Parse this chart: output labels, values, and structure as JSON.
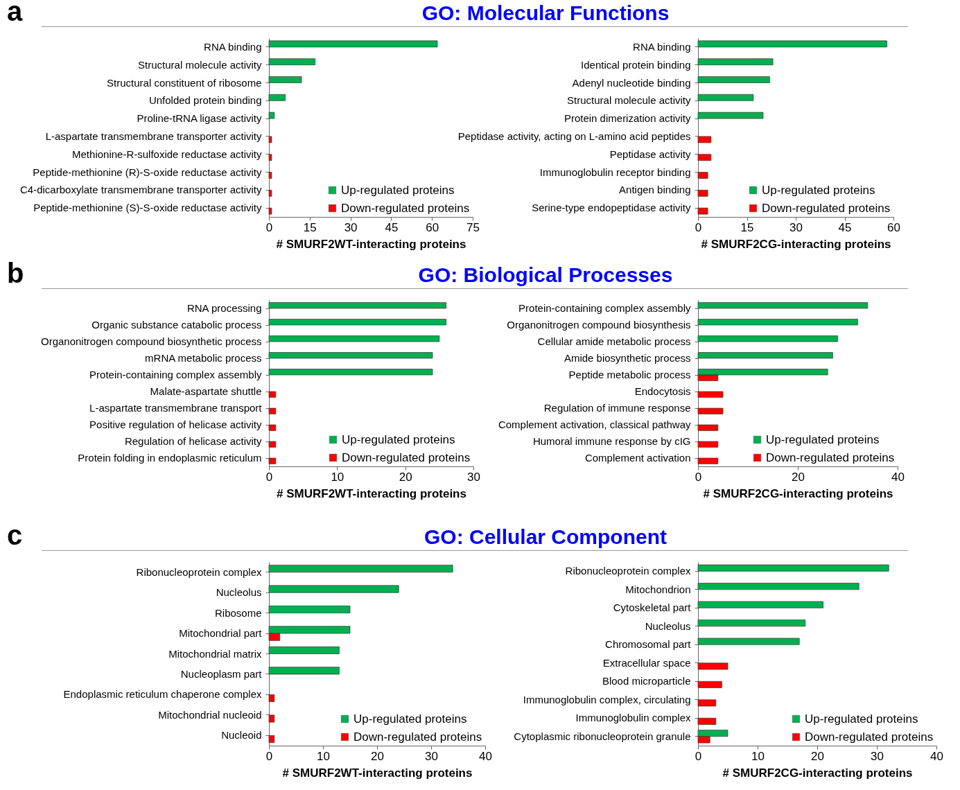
{
  "chart_data": [
    {
      "type": "bar",
      "orientation": "horizontal",
      "title": "GO: Molecular Functions",
      "annotations": [
        "a"
      ],
      "xlabel": "# SMURF2WT-interacting proteins",
      "categories": [
        "RNA binding",
        "Structural molecule activity",
        "Structural constituent of ribosome",
        "Unfolded protein binding",
        "Proline-tRNA ligase activity",
        "L-aspartate transmembrane transporter activity",
        "Methionine-R-sulfoxide reductase activity",
        "Peptide-methionine (R)-S-oxide reductase activity",
        "C4-dicarboxylate transmembrane transporter activity",
        "Peptide-methionine (S)-S-oxide reductase activity"
      ],
      "xlim": [
        0,
        75
      ],
      "xticks": [
        0,
        15,
        30,
        45,
        60,
        75
      ],
      "legend": "bottom right",
      "series": [
        {
          "name": "Up-regulated proteins",
          "color": "#00b050",
          "values": [
            62,
            17,
            12,
            6,
            2,
            null,
            null,
            null,
            null,
            null
          ]
        },
        {
          "name": "Down-regulated proteins",
          "color": "#ff0000",
          "values": [
            null,
            null,
            null,
            null,
            null,
            1,
            1,
            1,
            1,
            1
          ]
        }
      ]
    },
    {
      "type": "bar",
      "orientation": "horizontal",
      "xlabel": "# SMURF2CG-interacting proteins",
      "categories": [
        "RNA binding",
        "Identical protein binding",
        "Adenyl nucleotide binding",
        "Structural molecule activity",
        "Protein dimerization activity",
        "Peptidase activity, acting on L-amino acid peptides",
        "Peptidase activity",
        "Immunoglobulin receptor binding",
        "Antigen binding",
        "Serine-type endopeptidase activity"
      ],
      "xlim": [
        0,
        60
      ],
      "xticks": [
        0,
        15,
        30,
        45,
        60
      ],
      "legend": "bottom right",
      "series": [
        {
          "name": "Up-regulated proteins",
          "color": "#00b050",
          "values": [
            58,
            23,
            22,
            17,
            20,
            null,
            null,
            null,
            null,
            null
          ]
        },
        {
          "name": "Down-regulated proteins",
          "color": "#ff0000",
          "values": [
            null,
            null,
            null,
            null,
            null,
            4,
            4,
            3,
            3,
            3
          ]
        }
      ]
    },
    {
      "type": "bar",
      "orientation": "horizontal",
      "title": "GO: Biological Processes",
      "annotations": [
        "b"
      ],
      "xlabel": "# SMURF2WT-interacting proteins",
      "categories": [
        "RNA processing",
        "Organic substance catabolic process",
        "Organonitrogen compound biosynthetic process",
        "mRNA metabolic process",
        "Protein-containing complex assembly",
        "Malate-aspartate shuttle",
        "L-aspartate transmembrane transport",
        "Positive regulation of helicase activity",
        "Regulation of helicase activity",
        "Protein folding in endoplasmic reticulum"
      ],
      "xlim": [
        0,
        30
      ],
      "xticks": [
        0,
        10,
        20,
        30
      ],
      "legend": "bottom right",
      "series": [
        {
          "name": "Up-regulated proteins",
          "color": "#00b050",
          "values": [
            26,
            26,
            25,
            24,
            24,
            null,
            null,
            null,
            null,
            null
          ]
        },
        {
          "name": "Down-regulated proteins",
          "color": "#ff0000",
          "values": [
            null,
            null,
            null,
            null,
            null,
            1,
            1,
            1,
            1,
            1
          ]
        }
      ]
    },
    {
      "type": "bar",
      "orientation": "horizontal",
      "xlabel": "# SMURF2CG-interacting proteins",
      "categories": [
        "Protein-containing complex assembly",
        "Organonitrogen compound biosynthesis",
        "Cellular amide metabolic process",
        "Amide biosynthetic process",
        "Peptide metabolic process",
        "Endocytosis",
        "Regulation of immune response",
        "Complement activation, classical pathway",
        "Humoral immune response by cIG",
        "Complement activation"
      ],
      "xlim": [
        0,
        40
      ],
      "xticks": [
        0,
        20,
        40
      ],
      "legend": "bottom right",
      "series": [
        {
          "name": "Up-regulated proteins",
          "color": "#00b050",
          "values": [
            34,
            32,
            28,
            27,
            26,
            null,
            null,
            null,
            null,
            null
          ]
        },
        {
          "name": "Down-regulated proteins",
          "color": "#ff0000",
          "values": [
            null,
            null,
            null,
            null,
            4,
            5,
            5,
            4,
            4,
            4
          ]
        }
      ]
    },
    {
      "type": "bar",
      "orientation": "horizontal",
      "title": "GO: Cellular Component",
      "annotations": [
        "c"
      ],
      "xlabel": "# SMURF2WT-interacting proteins",
      "categories": [
        "Ribonucleoprotein complex",
        "Nucleolus",
        "Ribosome",
        "Mitochondrial part",
        "Mitochondrial matrix",
        "Nucleoplasm part",
        "Endoplasmic reticulum chaperone complex",
        "Mitochondrial nucleoid",
        "Nucleoid"
      ],
      "xlim": [
        0,
        40
      ],
      "xticks": [
        0,
        10,
        20,
        30,
        40
      ],
      "legend": "bottom right",
      "series": [
        {
          "name": "Up-regulated proteins",
          "color": "#00b050",
          "values": [
            34,
            24,
            15,
            15,
            13,
            13,
            null,
            null,
            null
          ]
        },
        {
          "name": "Down-regulated proteins",
          "color": "#ff0000",
          "values": [
            null,
            null,
            null,
            2,
            null,
            null,
            1,
            1,
            1
          ]
        }
      ]
    },
    {
      "type": "bar",
      "orientation": "horizontal",
      "xlabel": "# SMURF2CG-interacting proteins",
      "categories": [
        "Ribonucleoprotein complex",
        "Mitochondrion",
        "Cytoskeletal part",
        "Nucleolus",
        "Chromosomal part",
        "Extracellular space",
        "Blood microparticle",
        "Immunoglobulin complex, circulating",
        "Immunoglobulin complex",
        "Cytoplasmic ribonucleoprotein granule"
      ],
      "xlim": [
        0,
        40
      ],
      "xticks": [
        0,
        10,
        20,
        30,
        40
      ],
      "legend": "bottom right",
      "series": [
        {
          "name": "Up-regulated proteins",
          "color": "#00b050",
          "values": [
            32,
            27,
            21,
            18,
            17,
            null,
            null,
            null,
            null,
            5
          ]
        },
        {
          "name": "Down-regulated proteins",
          "color": "#ff0000",
          "values": [
            null,
            null,
            null,
            null,
            null,
            5,
            4,
            3,
            3,
            2
          ]
        }
      ]
    }
  ]
}
